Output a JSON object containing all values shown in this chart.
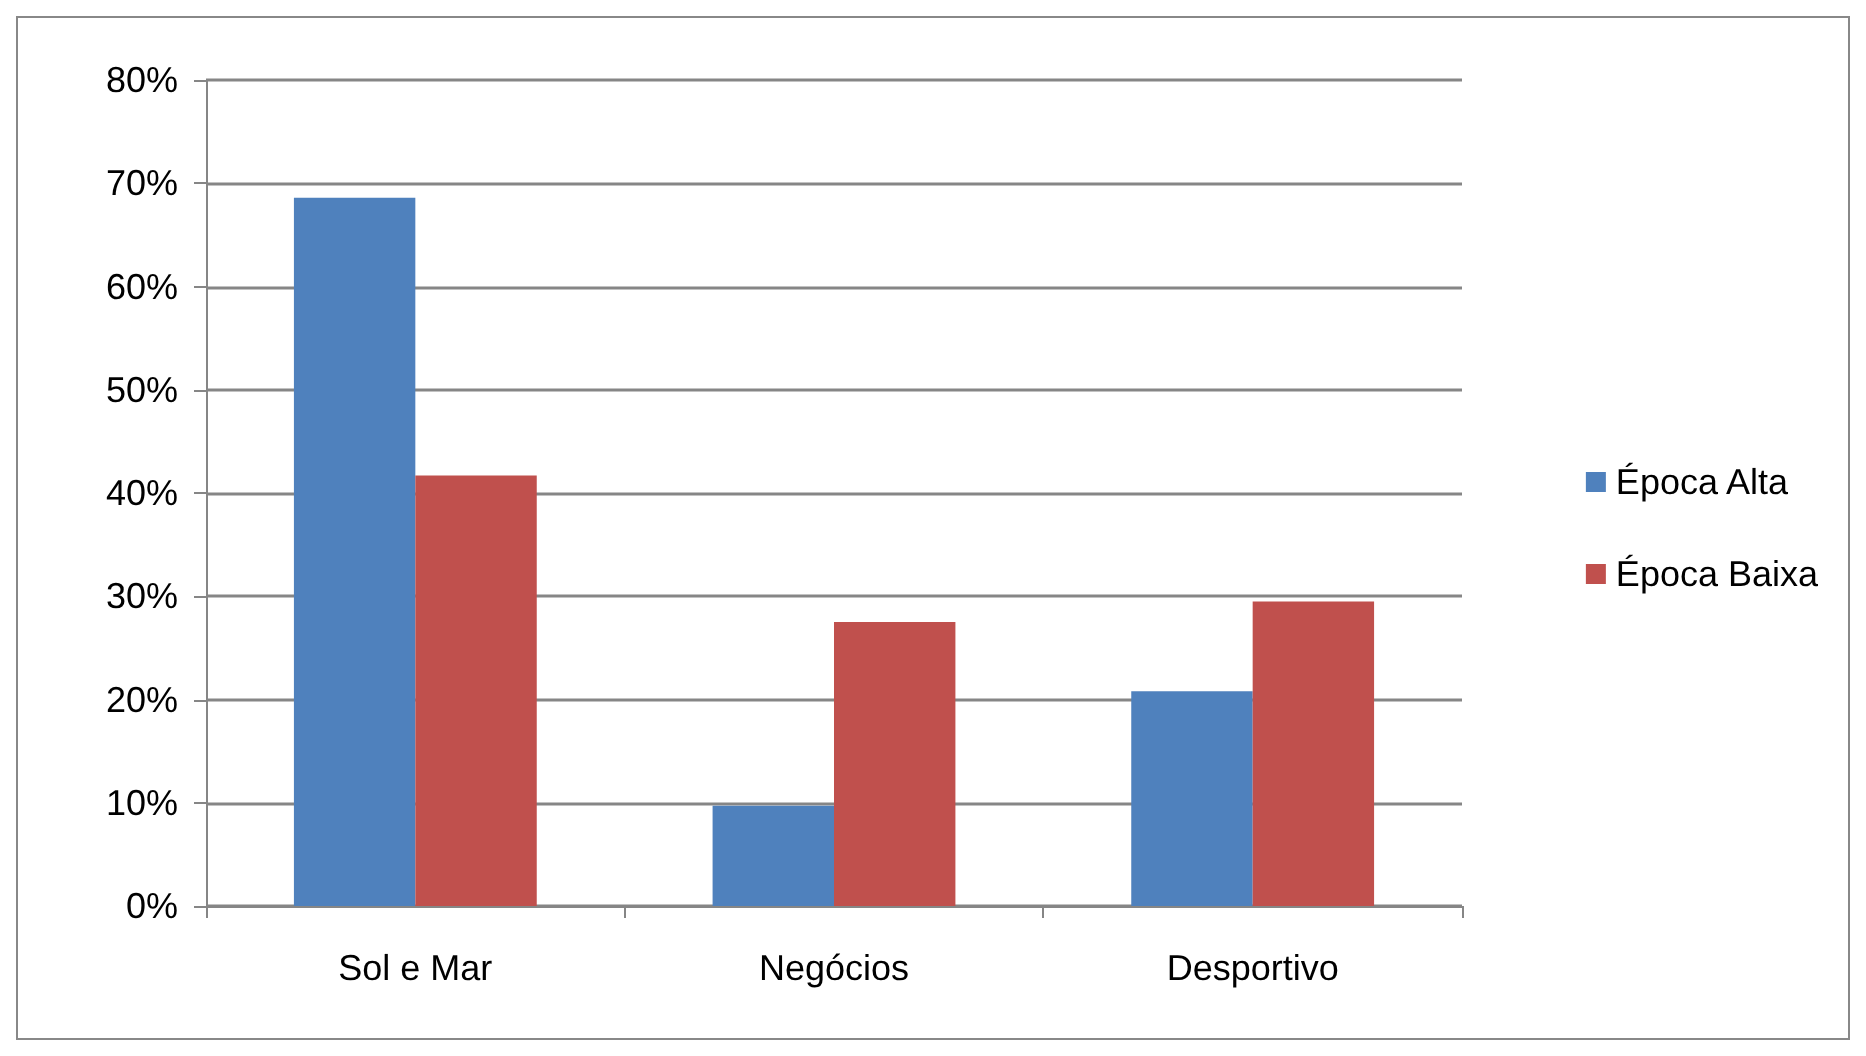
{
  "chart_data": {
    "type": "bar",
    "categories": [
      "Sol e Mar",
      "Negócios",
      "Desportivo"
    ],
    "series": [
      {
        "name": "Época Alta",
        "color": "#4f81bd",
        "values": [
          68.6,
          9.7,
          20.8
        ]
      },
      {
        "name": "Época Baixa",
        "color": "#c0504d",
        "values": [
          41.7,
          27.5,
          29.5
        ]
      }
    ],
    "ylim": [
      0,
      80
    ],
    "yticks": [
      {
        "value": 0,
        "label": "0%"
      },
      {
        "value": 10,
        "label": "10%"
      },
      {
        "value": 20,
        "label": "20%"
      },
      {
        "value": 30,
        "label": "30%"
      },
      {
        "value": 40,
        "label": "40%"
      },
      {
        "value": 50,
        "label": "50%"
      },
      {
        "value": 60,
        "label": "60%"
      },
      {
        "value": 70,
        "label": "70%"
      },
      {
        "value": 80,
        "label": "80%"
      }
    ],
    "grid": "y",
    "legend": "right"
  }
}
